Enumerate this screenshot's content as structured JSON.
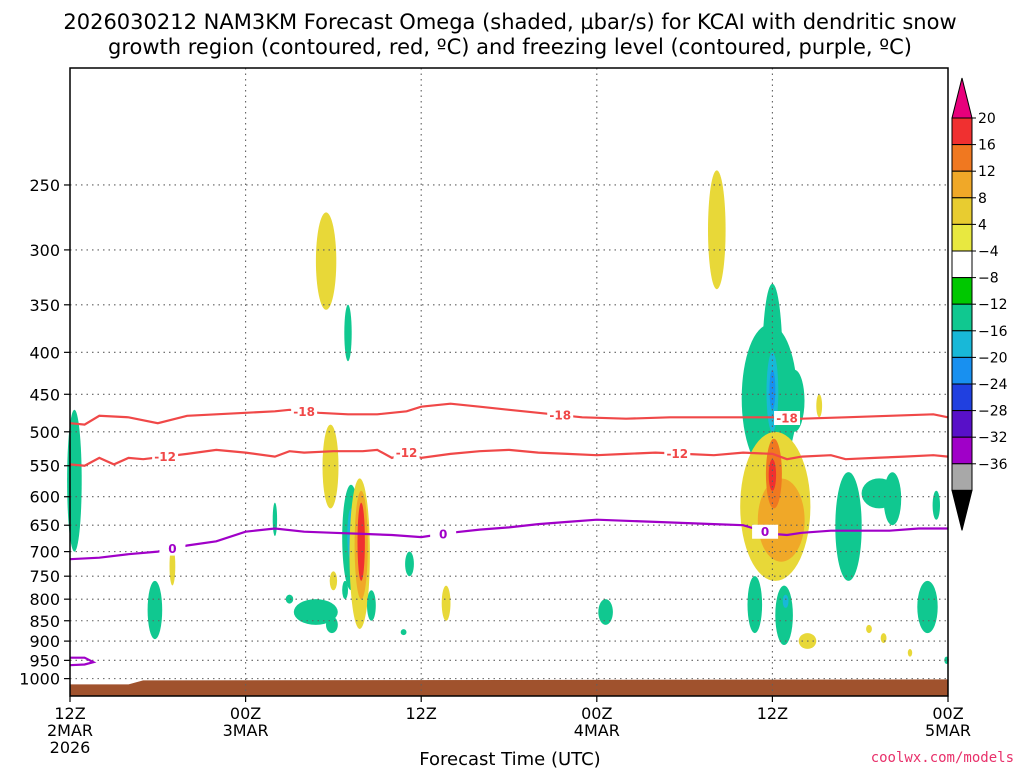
{
  "title": {
    "line1": "2026030212 NAM3KM Forecast Omega (shaded, µbar/s) for KCAI with dendritic snow",
    "line2": "growth region (contoured, red, ºC) and freezing level (contoured, purple, ºC)"
  },
  "credit": "coolwx.com/models",
  "chart_data": {
    "type": "time-height cross-section",
    "xlabel": "Forecast Time (UTC)",
    "ylabel": "",
    "y_scale": "pressure (log, inverted)",
    "ylim": [
      1050,
      180
    ],
    "xlim_hours": [
      0,
      60
    ],
    "x_ticks": [
      {
        "hour": 0,
        "line1": "12Z",
        "line2": "2MAR",
        "line3": "2026"
      },
      {
        "hour": 12,
        "line1": "00Z",
        "line2": "3MAR",
        "line3": ""
      },
      {
        "hour": 24,
        "line1": "12Z",
        "line2": "",
        "line3": ""
      },
      {
        "hour": 36,
        "line1": "00Z",
        "line2": "4MAR",
        "line3": ""
      },
      {
        "hour": 48,
        "line1": "12Z",
        "line2": "",
        "line3": ""
      },
      {
        "hour": 60,
        "line1": "00Z",
        "line2": "5MAR",
        "line3": ""
      }
    ],
    "y_ticks": [
      "250",
      "300",
      "350",
      "400",
      "450",
      "500",
      "550",
      "600",
      "650",
      "700",
      "750",
      "800",
      "850",
      "900",
      "950",
      "1000"
    ],
    "grid": true,
    "colorbar": {
      "labels": [
        "20",
        "16",
        "12",
        "8",
        "4",
        "−4",
        "−8",
        "−12",
        "−16",
        "−20",
        "−24",
        "−28",
        "−32",
        "−36"
      ],
      "colors": [
        "#e8007c",
        "#f03030",
        "#f07820",
        "#f0a828",
        "#e8cc30",
        "#e8e840",
        "#ffffff",
        "#00c800",
        "#10c890",
        "#18b8d8",
        "#1890f0",
        "#2040e0",
        "#5810c8",
        "#a000c8",
        "#a8a8a8",
        "#000000"
      ]
    },
    "contours": [
      {
        "name": "-18",
        "color": "#f04848",
        "labels": [
          {
            "hour": 16,
            "value": "-18"
          },
          {
            "hour": 33.5,
            "value": "-18"
          },
          {
            "hour": 49,
            "value": "-18"
          }
        ],
        "points": [
          [
            0,
            488
          ],
          [
            1,
            490
          ],
          [
            2,
            478
          ],
          [
            4,
            480
          ],
          [
            6,
            488
          ],
          [
            8,
            478
          ],
          [
            10,
            476
          ],
          [
            12,
            474
          ],
          [
            14,
            472
          ],
          [
            15,
            470
          ],
          [
            17,
            474
          ],
          [
            19,
            476
          ],
          [
            21,
            476
          ],
          [
            23,
            472
          ],
          [
            24,
            466
          ],
          [
            26,
            462
          ],
          [
            28,
            466
          ],
          [
            30,
            470
          ],
          [
            32,
            474
          ],
          [
            35,
            480
          ],
          [
            38,
            482
          ],
          [
            41,
            480
          ],
          [
            44,
            480
          ],
          [
            46,
            480
          ],
          [
            48,
            480
          ],
          [
            50,
            482
          ],
          [
            53,
            480
          ],
          [
            56,
            478
          ],
          [
            59,
            476
          ],
          [
            60,
            480
          ]
        ]
      },
      {
        "name": "-12",
        "color": "#f04848",
        "labels": [
          {
            "hour": 6.5,
            "value": "-12"
          },
          {
            "hour": 23,
            "value": "-12"
          },
          {
            "hour": 41.5,
            "value": "-12"
          }
        ],
        "points": [
          [
            0,
            548
          ],
          [
            1,
            550
          ],
          [
            2,
            538
          ],
          [
            3,
            548
          ],
          [
            4,
            538
          ],
          [
            5,
            540
          ],
          [
            8,
            532
          ],
          [
            10,
            526
          ],
          [
            12,
            530
          ],
          [
            14,
            536
          ],
          [
            15,
            528
          ],
          [
            16,
            530
          ],
          [
            18,
            528
          ],
          [
            20,
            528
          ],
          [
            21,
            526
          ],
          [
            22,
            538
          ],
          [
            23,
            530
          ],
          [
            24,
            538
          ],
          [
            26,
            532
          ],
          [
            28,
            528
          ],
          [
            30,
            526
          ],
          [
            32,
            530
          ],
          [
            34,
            532
          ],
          [
            36,
            534
          ],
          [
            38,
            532
          ],
          [
            40,
            530
          ],
          [
            42,
            532
          ],
          [
            44,
            534
          ],
          [
            46,
            530
          ],
          [
            48,
            532
          ],
          [
            49,
            540
          ],
          [
            50,
            536
          ],
          [
            52,
            534
          ],
          [
            53,
            540
          ],
          [
            55,
            538
          ],
          [
            57,
            536
          ],
          [
            59,
            534
          ],
          [
            60,
            536
          ]
        ]
      },
      {
        "name": "0",
        "color": "#a000c8",
        "labels": [
          {
            "hour": 7,
            "value": "0"
          },
          {
            "hour": 25.5,
            "value": "0"
          },
          {
            "hour": 47.5,
            "value": "0"
          }
        ],
        "points": [
          [
            0,
            715
          ],
          [
            2,
            712
          ],
          [
            4,
            705
          ],
          [
            6,
            700
          ],
          [
            8,
            688
          ],
          [
            10,
            680
          ],
          [
            12,
            662
          ],
          [
            14,
            656
          ],
          [
            16,
            662
          ],
          [
            18,
            664
          ],
          [
            20,
            666
          ],
          [
            22,
            668
          ],
          [
            24,
            672
          ],
          [
            26,
            664
          ],
          [
            28,
            658
          ],
          [
            30,
            654
          ],
          [
            32,
            648
          ],
          [
            34,
            644
          ],
          [
            36,
            640
          ],
          [
            38,
            642
          ],
          [
            40,
            644
          ],
          [
            42,
            646
          ],
          [
            44,
            648
          ],
          [
            46,
            650
          ],
          [
            48,
            666
          ],
          [
            49,
            668
          ],
          [
            50,
            664
          ],
          [
            52,
            660
          ],
          [
            54,
            660
          ],
          [
            56,
            660
          ],
          [
            58,
            656
          ],
          [
            60,
            656
          ]
        ]
      }
    ],
    "freezing_surface": [
      [
        0,
        943
      ],
      [
        1,
        943
      ],
      [
        1.6,
        955
      ],
      [
        1,
        961
      ],
      [
        0,
        963
      ]
    ],
    "omega_features": [
      {
        "hour": 17.5,
        "p_top": 270,
        "p_bot": 355,
        "hw": 0.7,
        "value": 4
      },
      {
        "hour": 19.0,
        "p_top": 350,
        "p_bot": 410,
        "hw": 0.25,
        "value": -8
      },
      {
        "hour": 44.2,
        "p_top": 240,
        "p_bot": 335,
        "hw": 0.6,
        "value": 4
      },
      {
        "hour": 0.3,
        "p_top": 470,
        "p_bot": 700,
        "hw": 0.5,
        "value": -8
      },
      {
        "hour": 5.8,
        "p_top": 760,
        "p_bot": 895,
        "hw": 0.5,
        "value": -8
      },
      {
        "hour": 7.0,
        "p_top": 690,
        "p_bot": 770,
        "hw": 0.2,
        "value": 4
      },
      {
        "hour": 14.0,
        "p_top": 610,
        "p_bot": 670,
        "hw": 0.15,
        "value": -8
      },
      {
        "hour": 15.0,
        "p_top": 790,
        "p_bot": 810,
        "hw": 0.25,
        "value": -8
      },
      {
        "hour": 17.8,
        "p_top": 490,
        "p_bot": 620,
        "hw": 0.55,
        "value": 4
      },
      {
        "hour": 19.2,
        "p_top": 580,
        "p_bot": 780,
        "hw": 0.6,
        "value": -8
      },
      {
        "hour": 19.2,
        "p_top": 620,
        "p_bot": 720,
        "hw": 0.25,
        "value": -14
      },
      {
        "hour": 19.8,
        "p_top": 570,
        "p_bot": 870,
        "hw": 0.7,
        "value": 4
      },
      {
        "hour": 19.9,
        "p_top": 590,
        "p_bot": 800,
        "hw": 0.45,
        "value": 10
      },
      {
        "hour": 19.9,
        "p_top": 610,
        "p_bot": 760,
        "hw": 0.25,
        "value": 16
      },
      {
        "hour": 18.0,
        "p_top": 740,
        "p_bot": 780,
        "hw": 0.25,
        "value": 4
      },
      {
        "hour": 18.8,
        "p_top": 760,
        "p_bot": 800,
        "hw": 0.2,
        "value": -8
      },
      {
        "hour": 16.8,
        "p_top": 800,
        "p_bot": 860,
        "hw": 1.5,
        "value": -8
      },
      {
        "hour": 17.9,
        "p_top": 840,
        "p_bot": 880,
        "hw": 0.4,
        "value": -8
      },
      {
        "hour": 20.6,
        "p_top": 780,
        "p_bot": 850,
        "hw": 0.3,
        "value": -8
      },
      {
        "hour": 25.7,
        "p_top": 770,
        "p_bot": 850,
        "hw": 0.3,
        "value": 4
      },
      {
        "hour": 23.2,
        "p_top": 700,
        "p_bot": 750,
        "hw": 0.3,
        "value": -8
      },
      {
        "hour": 22.8,
        "p_top": 870,
        "p_bot": 885,
        "hw": 0.2,
        "value": -8
      },
      {
        "hour": 36.6,
        "p_top": 800,
        "p_bot": 860,
        "hw": 0.5,
        "value": -8
      },
      {
        "hour": 47.8,
        "p_top": 370,
        "p_bot": 560,
        "hw": 1.9,
        "value": -8
      },
      {
        "hour": 48.0,
        "p_top": 330,
        "p_bot": 520,
        "hw": 0.7,
        "value": -8
      },
      {
        "hour": 48.0,
        "p_top": 400,
        "p_bot": 500,
        "hw": 0.4,
        "value": -12
      },
      {
        "hour": 48.0,
        "p_top": 420,
        "p_bot": 470,
        "hw": 0.2,
        "value": -16
      },
      {
        "hour": 49.5,
        "p_top": 420,
        "p_bot": 500,
        "hw": 0.7,
        "value": -8
      },
      {
        "hour": 51.2,
        "p_top": 450,
        "p_bot": 480,
        "hw": 0.2,
        "value": 4
      },
      {
        "hour": 47.3,
        "p_top": 510,
        "p_bot": 610,
        "hw": 0.45,
        "value": -10
      },
      {
        "hour": 48.2,
        "p_top": 500,
        "p_bot": 760,
        "hw": 2.4,
        "value": 4
      },
      {
        "hour": 48.6,
        "p_top": 570,
        "p_bot": 720,
        "hw": 1.6,
        "value": 9
      },
      {
        "hour": 48.1,
        "p_top": 510,
        "p_bot": 620,
        "hw": 0.55,
        "value": 12
      },
      {
        "hour": 48.0,
        "p_top": 540,
        "p_bot": 590,
        "hw": 0.25,
        "value": 16
      },
      {
        "hour": 46.8,
        "p_top": 750,
        "p_bot": 880,
        "hw": 0.5,
        "value": -8
      },
      {
        "hour": 48.8,
        "p_top": 770,
        "p_bot": 910,
        "hw": 0.6,
        "value": -8
      },
      {
        "hour": 48.9,
        "p_top": 790,
        "p_bot": 820,
        "hw": 0.2,
        "value": -14
      },
      {
        "hour": 50.4,
        "p_top": 880,
        "p_bot": 920,
        "hw": 0.6,
        "value": 4
      },
      {
        "hour": 53.2,
        "p_top": 560,
        "p_bot": 760,
        "hw": 0.9,
        "value": -8
      },
      {
        "hour": 55.3,
        "p_top": 570,
        "p_bot": 620,
        "hw": 1.2,
        "value": -8
      },
      {
        "hour": 56.2,
        "p_top": 560,
        "p_bot": 650,
        "hw": 0.6,
        "value": -8
      },
      {
        "hour": 58.6,
        "p_top": 760,
        "p_bot": 880,
        "hw": 0.7,
        "value": -8
      },
      {
        "hour": 59.2,
        "p_top": 590,
        "p_bot": 640,
        "hw": 0.25,
        "value": -8
      },
      {
        "hour": 54.6,
        "p_top": 860,
        "p_bot": 880,
        "hw": 0.2,
        "value": 4
      },
      {
        "hour": 55.6,
        "p_top": 880,
        "p_bot": 905,
        "hw": 0.2,
        "value": 4
      },
      {
        "hour": 57.4,
        "p_top": 920,
        "p_bot": 940,
        "hw": 0.15,
        "value": 4
      },
      {
        "hour": 59.9,
        "p_top": 940,
        "p_bot": 960,
        "hw": 0.15,
        "value": -8
      }
    ],
    "terrain_color": "#a0522d"
  }
}
